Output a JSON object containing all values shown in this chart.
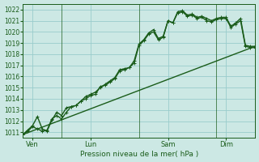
{
  "xlabel": "Pression niveau de la mer( hPa )",
  "bg_color": "#cce8e4",
  "grid_color": "#99cccc",
  "line_color": "#1a5c1a",
  "ylim": [
    1010.5,
    1022.5
  ],
  "yticks": [
    1011,
    1012,
    1013,
    1014,
    1015,
    1016,
    1017,
    1018,
    1019,
    1020,
    1021,
    1022
  ],
  "xlim": [
    0,
    24
  ],
  "day_positions": [
    1,
    7,
    15,
    21
  ],
  "day_labels": [
    "Ven",
    "Lun",
    "Sam",
    "Dim"
  ],
  "vline_positions": [
    4,
    12,
    20
  ],
  "line1_x": [
    0,
    0.5,
    1.0,
    1.5,
    2.0,
    2.5,
    3.0,
    3.5,
    4.0,
    4.5,
    5.0,
    5.5,
    6.0,
    6.5,
    7.0,
    7.5,
    8.0,
    8.5,
    9.0,
    9.5,
    10.0,
    10.5,
    11.0,
    11.5,
    12.0,
    12.5,
    13.0,
    13.5,
    14.0,
    14.5,
    15.0,
    15.5,
    16.0,
    16.5,
    17.0,
    17.5,
    18.0,
    18.5,
    19.0,
    19.5,
    20.0,
    20.5,
    21.0,
    21.5,
    22.0,
    22.5,
    23.0,
    23.5,
    24.0
  ],
  "line1_y": [
    1010.8,
    1011.1,
    1011.5,
    1011.3,
    1011.1,
    1011.2,
    1012.2,
    1012.5,
    1012.2,
    1012.8,
    1013.3,
    1013.4,
    1013.8,
    1014.0,
    1014.3,
    1014.4,
    1015.1,
    1015.2,
    1015.5,
    1015.8,
    1016.5,
    1016.6,
    1016.8,
    1017.2,
    1018.8,
    1019.2,
    1019.8,
    1020.0,
    1019.3,
    1019.5,
    1021.0,
    1020.8,
    1021.8,
    1021.9,
    1021.5,
    1021.6,
    1021.3,
    1021.4,
    1021.2,
    1021.0,
    1021.2,
    1021.3,
    1021.3,
    1020.5,
    1020.8,
    1021.2,
    1018.8,
    1018.7,
    1018.7
  ],
  "line2_x": [
    0,
    0.5,
    1.0,
    1.5,
    2.0,
    2.5,
    3.0,
    3.5,
    4.0,
    4.5,
    5.0,
    5.5,
    6.0,
    6.5,
    7.0,
    7.5,
    8.0,
    8.5,
    9.0,
    9.5,
    10.0,
    10.5,
    11.0,
    11.5,
    12.0,
    12.5,
    13.0,
    13.5,
    14.0,
    14.5,
    15.0,
    15.5,
    16.0,
    16.5,
    17.0,
    17.5,
    18.0,
    18.5,
    19.0,
    19.5,
    20.0,
    20.5,
    21.0,
    21.5,
    22.0,
    22.5,
    23.0,
    23.5,
    24.0
  ],
  "line2_y": [
    1010.8,
    1011.2,
    1011.6,
    1012.4,
    1011.3,
    1011.1,
    1012.1,
    1012.8,
    1012.5,
    1013.2,
    1013.3,
    1013.4,
    1013.8,
    1014.2,
    1014.4,
    1014.6,
    1015.0,
    1015.3,
    1015.6,
    1015.9,
    1016.6,
    1016.7,
    1016.8,
    1017.4,
    1018.9,
    1019.3,
    1019.9,
    1020.2,
    1019.4,
    1019.6,
    1021.0,
    1020.8,
    1021.7,
    1021.8,
    1021.4,
    1021.5,
    1021.2,
    1021.3,
    1021.0,
    1020.9,
    1021.1,
    1021.2,
    1021.2,
    1020.4,
    1020.7,
    1021.0,
    1018.7,
    1018.6,
    1018.6
  ],
  "trend_x": [
    0,
    24
  ],
  "trend_y": [
    1010.8,
    1018.7
  ],
  "marker_size": 3.0,
  "linewidth": 1.0,
  "trend_linewidth": 1.0,
  "figsize": [
    3.2,
    2.0
  ],
  "dpi": 100
}
